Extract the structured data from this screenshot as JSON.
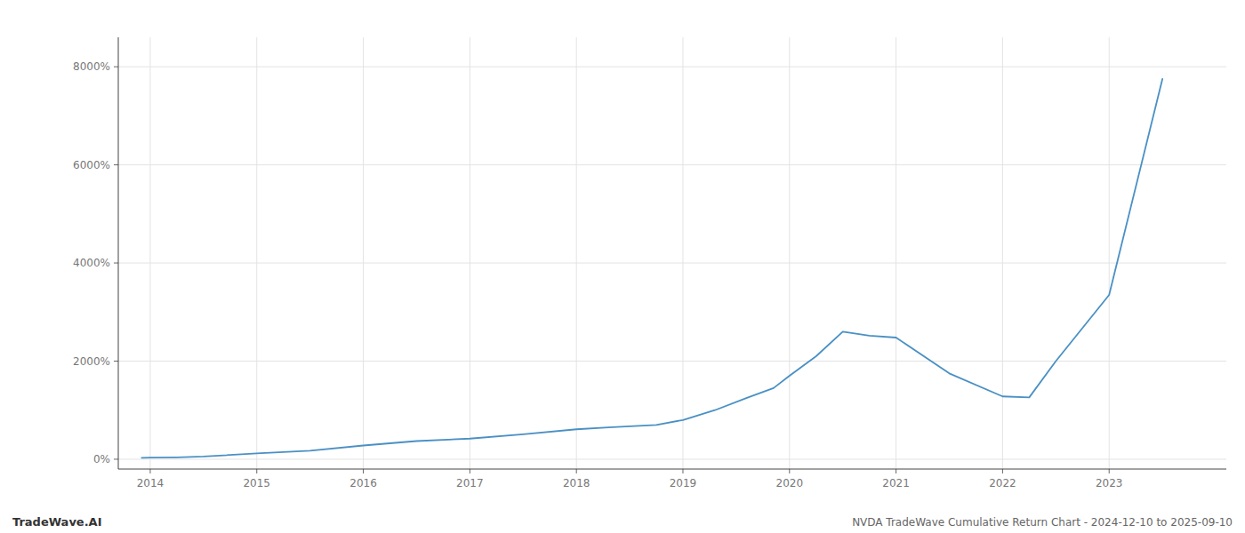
{
  "chart_data": {
    "type": "line",
    "title": "NVDA TradeWave Cumulative Return Chart - 2024-12-10 to 2025-09-10",
    "annotations": [
      "TradeWave.AI"
    ],
    "x": [
      2013.92,
      2014.0,
      2014.25,
      2014.5,
      2015.0,
      2015.5,
      2016.0,
      2016.5,
      2017.0,
      2017.5,
      2018.0,
      2018.3,
      2018.75,
      2019.0,
      2019.3,
      2019.6,
      2019.85,
      2020.0,
      2020.25,
      2020.5,
      2020.75,
      2021.0,
      2021.5,
      2022.0,
      2022.25,
      2022.5,
      2023.0,
      2023.5
    ],
    "values": [
      30,
      32,
      38,
      55,
      120,
      175,
      280,
      370,
      420,
      510,
      610,
      650,
      700,
      800,
      1000,
      1250,
      1450,
      1700,
      2100,
      2600,
      2520,
      2480,
      1750,
      1280,
      1260,
      2000,
      3350,
      7750
    ],
    "color": "#4a90c4",
    "xlim": [
      2013.7,
      2024.1
    ],
    "xticks": [
      2014,
      2015,
      2016,
      2017,
      2018,
      2019,
      2020,
      2021,
      2022,
      2023
    ],
    "ylim": [
      -200,
      8600
    ],
    "yticks": [
      {
        "value": 0,
        "label": "0%"
      },
      {
        "value": 2000,
        "label": "2000%"
      },
      {
        "value": 4000,
        "label": "4000%"
      },
      {
        "value": 6000,
        "label": "6000%"
      },
      {
        "value": 8000,
        "label": "8000%"
      }
    ],
    "grid": true
  }
}
